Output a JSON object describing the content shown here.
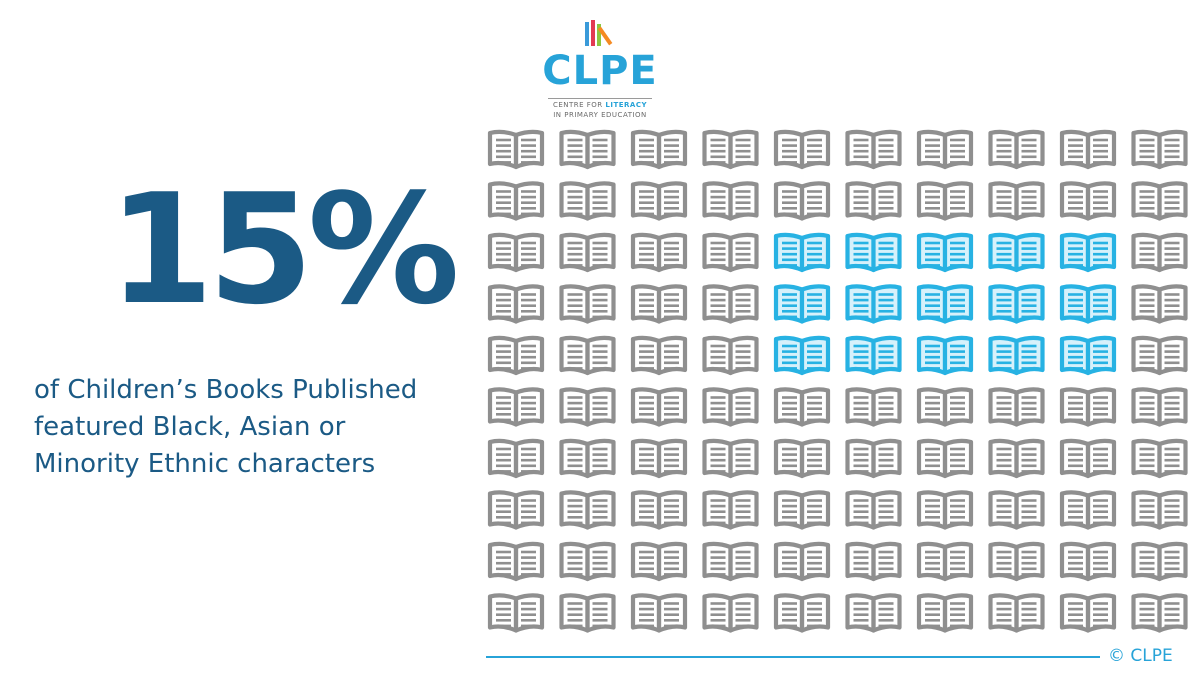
{
  "logo": {
    "wordmark": "CLPE",
    "tagline_prefix": "CENTRE FOR ",
    "tagline_highlight": "LITERACY",
    "tagline_line2": "IN PRIMARY EDUCATION",
    "bar_colors": [
      "#3a9ad9",
      "#e23a52",
      "#8dc63f",
      "#f58a22"
    ]
  },
  "headline": {
    "value": "15%",
    "description_lines": [
      "of Children’s Books Published",
      "featured Black, Asian or",
      "Minority Ethnic characters"
    ]
  },
  "copyright": "© CLPE",
  "chart_data": {
    "type": "pictogram",
    "icon": "open-book-icon",
    "rows": 10,
    "columns": 10,
    "total": 100,
    "highlighted_value": 15,
    "highlighted_cells": [
      [
        2,
        4
      ],
      [
        2,
        5
      ],
      [
        2,
        6
      ],
      [
        2,
        7
      ],
      [
        2,
        8
      ],
      [
        3,
        4
      ],
      [
        3,
        5
      ],
      [
        3,
        6
      ],
      [
        3,
        7
      ],
      [
        3,
        8
      ],
      [
        4,
        4
      ],
      [
        4,
        5
      ],
      [
        4,
        6
      ],
      [
        4,
        7
      ],
      [
        4,
        8
      ]
    ],
    "highlight_color": "#27b2e3",
    "base_color": "#8f8f8f"
  },
  "colors": {
    "accent": "#27a3d8",
    "headline": "#1b5a85",
    "book_grey": "#8f8f8f",
    "book_blue": "#27b2e3"
  }
}
